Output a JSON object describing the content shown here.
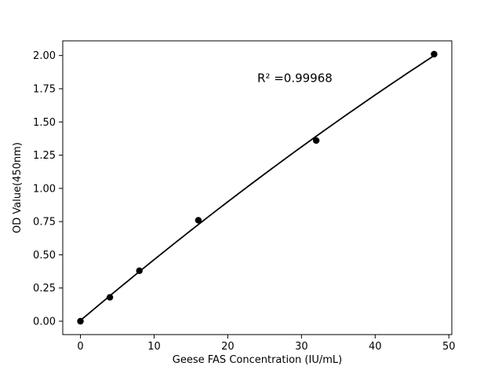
{
  "figure": {
    "background": "#ffffff"
  },
  "chart_data": {
    "type": "scatter",
    "title": "",
    "xlabel": "Geese FAS Concentration (IU/mL)",
    "ylabel": "OD Value(450nm)",
    "x": [
      0,
      4,
      8,
      16,
      32,
      48
    ],
    "y": [
      0.0,
      0.18,
      0.38,
      0.76,
      1.36,
      2.01
    ],
    "annotation": {
      "text": "R² =0.99968",
      "x": 24,
      "y": 1.8
    },
    "trendline": {
      "type": "quadratic",
      "a": -0.00011242,
      "b": 0.046935,
      "c": 0.005485,
      "x_start": 0,
      "x_end": 48
    },
    "xticks": {
      "values": [
        0,
        10,
        20,
        30,
        40,
        50
      ],
      "labels": [
        "0",
        "10",
        "20",
        "30",
        "40",
        "50"
      ]
    },
    "yticks": {
      "values": [
        0,
        0.25,
        0.5,
        0.75,
        1.0,
        1.25,
        1.5,
        1.75,
        2.0
      ],
      "labels": [
        "0.00",
        "0.25",
        "0.50",
        "0.75",
        "1.00",
        "1.25",
        "1.50",
        "1.75",
        "2.00"
      ]
    },
    "xlim": [
      -2.4,
      50.4
    ],
    "ylim": [
      -0.1005,
      2.1105
    ],
    "grid": false,
    "legend": null,
    "colors": {
      "marker": "#000000",
      "line": "#000000",
      "axis": "#000000",
      "text": "#000000"
    }
  }
}
